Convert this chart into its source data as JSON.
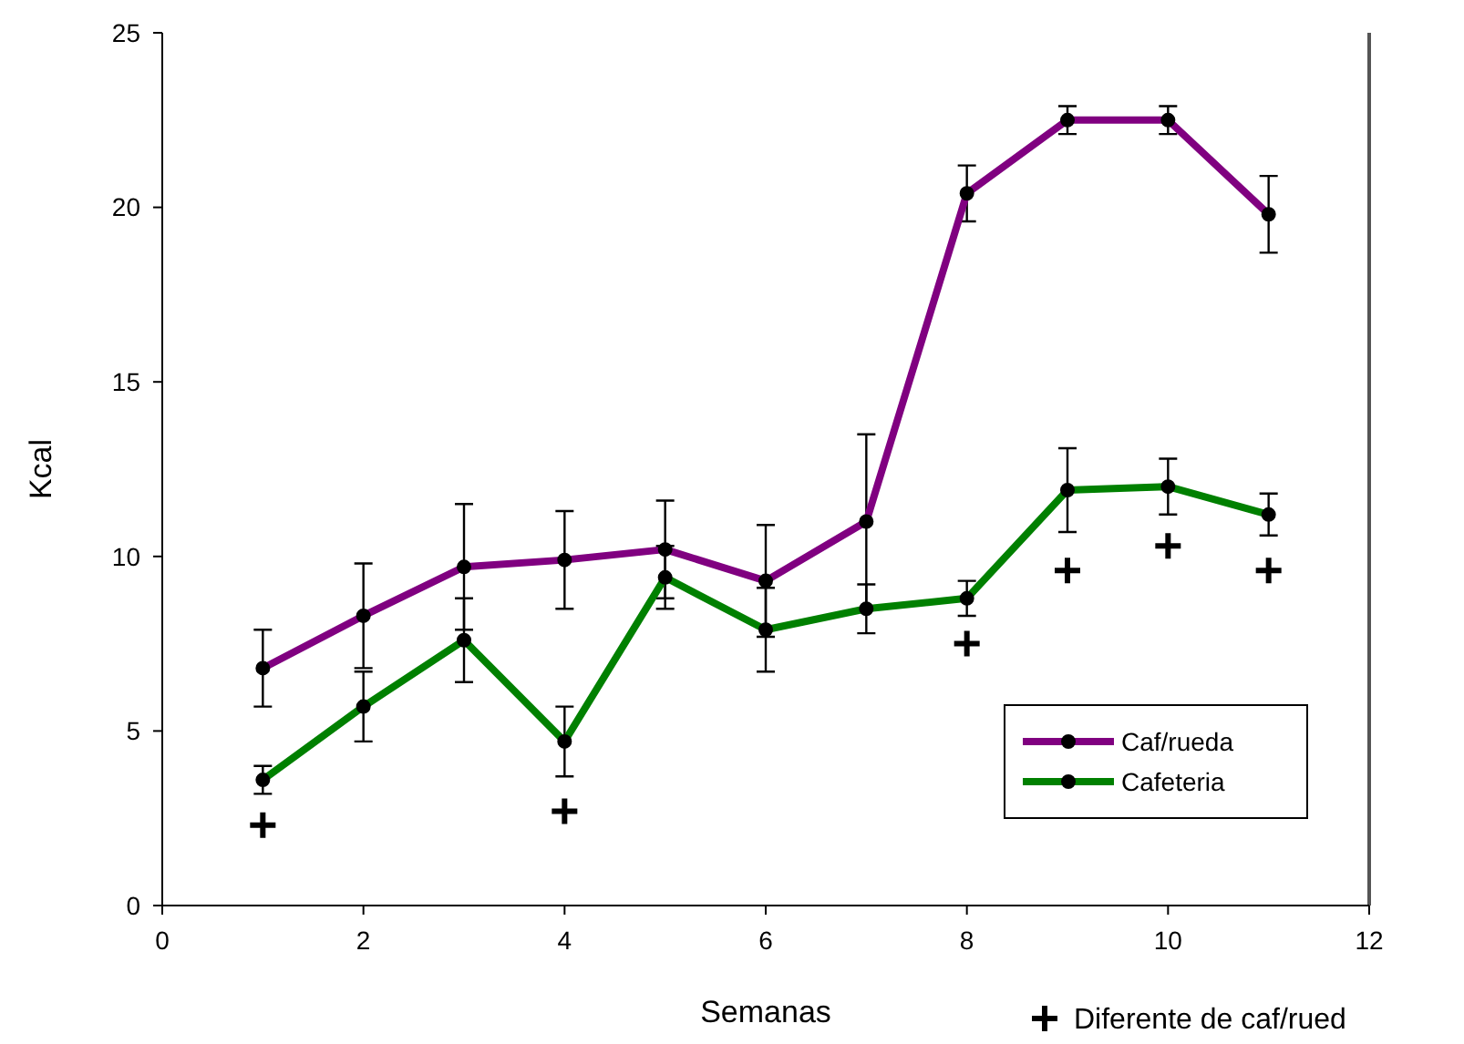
{
  "chart_data": {
    "type": "line",
    "xlabel": "Semanas",
    "ylabel": "Kcal",
    "x": [
      1,
      2,
      3,
      4,
      5,
      6,
      7,
      8,
      9,
      10,
      11
    ],
    "xlim": [
      0,
      12
    ],
    "xticks": [
      0,
      2,
      4,
      6,
      8,
      10,
      12
    ],
    "ylim": [
      0,
      25
    ],
    "yticks": [
      0,
      5,
      10,
      15,
      20,
      25
    ],
    "grid": false,
    "legend": "bottom right",
    "marker": "circle",
    "series": [
      {
        "name": "Caf/rueda",
        "color": "#800080",
        "values": [
          6.8,
          8.3,
          9.7,
          9.9,
          10.2,
          9.3,
          11.0,
          20.4,
          22.5,
          22.5,
          19.8
        ],
        "errors": [
          1.1,
          1.5,
          1.8,
          1.4,
          1.4,
          1.6,
          2.5,
          0.8,
          0.4,
          0.4,
          1.1
        ]
      },
      {
        "name": "Cafeteria",
        "color": "#008000",
        "values": [
          3.6,
          5.7,
          7.6,
          4.7,
          9.4,
          7.9,
          8.5,
          8.8,
          11.9,
          12.0,
          11.2
        ],
        "errors": [
          0.4,
          1.0,
          1.2,
          1.0,
          0.9,
          1.2,
          0.7,
          0.5,
          1.2,
          0.8,
          0.6
        ]
      },
      {
        "name": "Diferente de caf/rued",
        "type": "scatter",
        "marker": "cross",
        "color": "#000000",
        "x": [
          1,
          4,
          8,
          9,
          10,
          11
        ],
        "values": [
          2.3,
          2.7,
          7.5,
          9.6,
          10.3,
          9.6
        ]
      }
    ]
  }
}
